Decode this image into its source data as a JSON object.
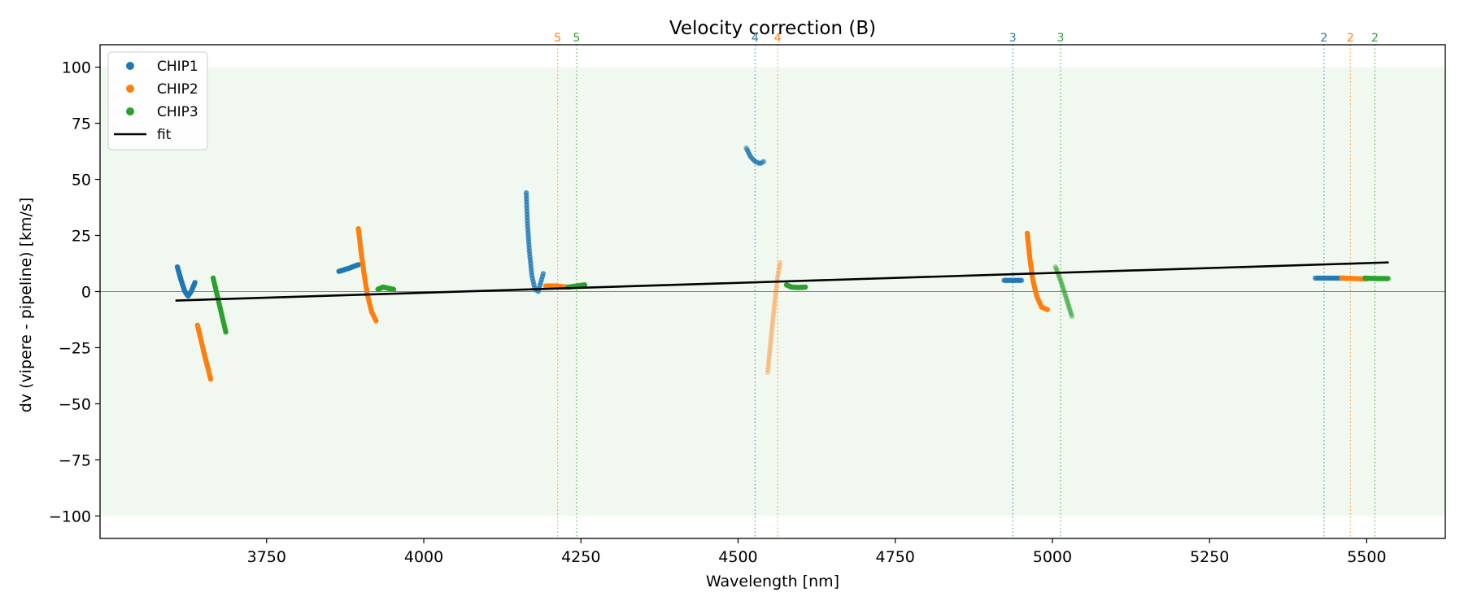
{
  "chart_data": {
    "type": "scatter",
    "title": "Velocity correction (B)",
    "xlabel": "Wavelength [nm]",
    "ylabel": "dv (vipere - pipeline) [km/s]",
    "xlim": [
      3485,
      5625
    ],
    "ylim": [
      -110,
      110
    ],
    "xticks": [
      3750,
      4000,
      4250,
      4500,
      4750,
      5000,
      5250,
      5500
    ],
    "yticks": [
      100,
      75,
      50,
      25,
      0,
      -25,
      -50,
      -75,
      -100
    ],
    "ytick_labels": [
      "100",
      "75",
      "50",
      "25",
      "0",
      "−25",
      "−50",
      "−75",
      "−100"
    ],
    "grid": false,
    "legend_position": "top-left",
    "colors": {
      "CHIP1": "#1f77b4",
      "CHIP2": "#ff7f0e",
      "CHIP3": "#2ca02c",
      "fit": "#000000",
      "band": "#2ca02c",
      "zero_line": "#808080"
    },
    "legend": [
      {
        "name": "CHIP1",
        "kind": "marker",
        "color": "#1f77b4"
      },
      {
        "name": "CHIP2",
        "kind": "marker",
        "color": "#ff7f0e"
      },
      {
        "name": "CHIP3",
        "kind": "marker",
        "color": "#2ca02c"
      },
      {
        "name": "fit",
        "kind": "line",
        "color": "#000000"
      }
    ],
    "band": {
      "ymin": -100,
      "ymax": 100
    },
    "zero_line": 0,
    "fit": {
      "x": [
        3605,
        5535
      ],
      "y": [
        -4,
        13
      ]
    },
    "order_lines": [
      {
        "x": 4213,
        "label": "5",
        "chip": "CHIP2"
      },
      {
        "x": 4243,
        "label": "5",
        "chip": "CHIP3"
      },
      {
        "x": 4527,
        "label": "4",
        "chip": "CHIP1"
      },
      {
        "x": 4563,
        "label": "4",
        "chip": "CHIP2"
      },
      {
        "x": 4937,
        "label": "3",
        "chip": "CHIP1"
      },
      {
        "x": 5013,
        "label": "3",
        "chip": "CHIP3"
      },
      {
        "x": 5432,
        "label": "2",
        "chip": "CHIP1"
      },
      {
        "x": 5474,
        "label": "2",
        "chip": "CHIP2"
      },
      {
        "x": 5513,
        "label": "2",
        "chip": "CHIP3"
      }
    ],
    "series": [
      {
        "name": "CHIP1",
        "segment": "order6",
        "opacity": 1.0,
        "n": 32,
        "points": [
          [
            3608,
            11
          ],
          [
            3614,
            5
          ],
          [
            3620,
            0
          ],
          [
            3625,
            -2
          ],
          [
            3630,
            0
          ],
          [
            3636,
            4
          ]
        ]
      },
      {
        "name": "CHIP2",
        "segment": "order6",
        "opacity": 1.0,
        "n": 28,
        "points": [
          [
            3640,
            -15
          ],
          [
            3651,
            -28
          ],
          [
            3661,
            -39
          ]
        ]
      },
      {
        "name": "CHIP3",
        "segment": "order6",
        "opacity": 1.0,
        "n": 24,
        "points": [
          [
            3665,
            6
          ],
          [
            3675,
            -6
          ],
          [
            3685,
            -18
          ]
        ]
      },
      {
        "name": "CHIP1",
        "segment": "order5",
        "opacity": 1.0,
        "n": 22,
        "points": [
          [
            3865,
            9
          ],
          [
            3882,
            10.5
          ],
          [
            3896,
            12
          ]
        ]
      },
      {
        "name": "CHIP2",
        "segment": "order5",
        "opacity": 1.0,
        "n": 40,
        "points": [
          [
            3896,
            28
          ],
          [
            3900,
            18
          ],
          [
            3905,
            8
          ],
          [
            3910,
            -1
          ],
          [
            3917,
            -9
          ],
          [
            3924,
            -13
          ]
        ]
      },
      {
        "name": "CHIP3",
        "segment": "order5",
        "opacity": 1.0,
        "n": 20,
        "points": [
          [
            3927,
            1
          ],
          [
            3935,
            2
          ],
          [
            3943,
            1.5
          ],
          [
            3952,
            1
          ]
        ]
      },
      {
        "name": "CHIP1",
        "segment": "order4",
        "opacity": 0.75,
        "n": 40,
        "points": [
          [
            4163,
            44
          ],
          [
            4165,
            30
          ],
          [
            4168,
            18
          ],
          [
            4172,
            7
          ],
          [
            4177,
            1
          ],
          [
            4182,
            0
          ],
          [
            4186,
            4
          ],
          [
            4190,
            8
          ]
        ]
      },
      {
        "name": "CHIP2",
        "segment": "order4",
        "opacity": 1.0,
        "n": 18,
        "points": [
          [
            4194,
            2.5
          ],
          [
            4210,
            2.5
          ],
          [
            4228,
            2
          ]
        ]
      },
      {
        "name": "CHIP3",
        "segment": "order4",
        "opacity": 1.0,
        "n": 12,
        "points": [
          [
            4230,
            2
          ],
          [
            4243,
            2.5
          ],
          [
            4256,
            3
          ]
        ]
      },
      {
        "name": "CHIP1",
        "segment": "order3",
        "opacity": 0.45,
        "n": 22,
        "points": [
          [
            4513,
            64
          ],
          [
            4520,
            60
          ],
          [
            4527,
            58
          ],
          [
            4535,
            57
          ],
          [
            4541,
            58
          ]
        ]
      },
      {
        "name": "CHIP2",
        "segment": "order3",
        "opacity": 0.3,
        "n": 42,
        "points": [
          [
            4547,
            -36
          ],
          [
            4552,
            -22
          ],
          [
            4557,
            -8
          ],
          [
            4562,
            5
          ],
          [
            4567,
            13
          ]
        ]
      },
      {
        "name": "CHIP3",
        "segment": "order3",
        "opacity": 1.0,
        "n": 22,
        "points": [
          [
            4577,
            3
          ],
          [
            4585,
            2
          ],
          [
            4595,
            1.8
          ],
          [
            4607,
            2
          ]
        ]
      },
      {
        "name": "CHIP1",
        "segment": "order2",
        "opacity": 0.7,
        "n": 18,
        "points": [
          [
            4923,
            5
          ],
          [
            4937,
            5
          ],
          [
            4951,
            5
          ]
        ]
      },
      {
        "name": "CHIP2",
        "segment": "order2",
        "opacity": 1.0,
        "n": 40,
        "points": [
          [
            4960,
            26
          ],
          [
            4964,
            15
          ],
          [
            4969,
            5
          ],
          [
            4975,
            -2
          ],
          [
            4983,
            -7
          ],
          [
            4992,
            -8
          ]
        ]
      },
      {
        "name": "CHIP3",
        "segment": "order2",
        "opacity": 0.45,
        "n": 26,
        "points": [
          [
            5005,
            11
          ],
          [
            5013,
            5
          ],
          [
            5021,
            -2
          ],
          [
            5031,
            -11
          ]
        ]
      },
      {
        "name": "CHIP1",
        "segment": "order1",
        "opacity": 0.7,
        "n": 22,
        "points": [
          [
            5418,
            6
          ],
          [
            5440,
            6
          ],
          [
            5463,
            6
          ]
        ]
      },
      {
        "name": "CHIP2",
        "segment": "order1",
        "opacity": 0.9,
        "n": 20,
        "points": [
          [
            5460,
            6
          ],
          [
            5480,
            5.8
          ],
          [
            5500,
            5.6
          ]
        ]
      },
      {
        "name": "CHIP3",
        "segment": "order1",
        "opacity": 0.85,
        "n": 22,
        "points": [
          [
            5497,
            6
          ],
          [
            5515,
            5.8
          ],
          [
            5534,
            5.8
          ]
        ]
      }
    ]
  }
}
